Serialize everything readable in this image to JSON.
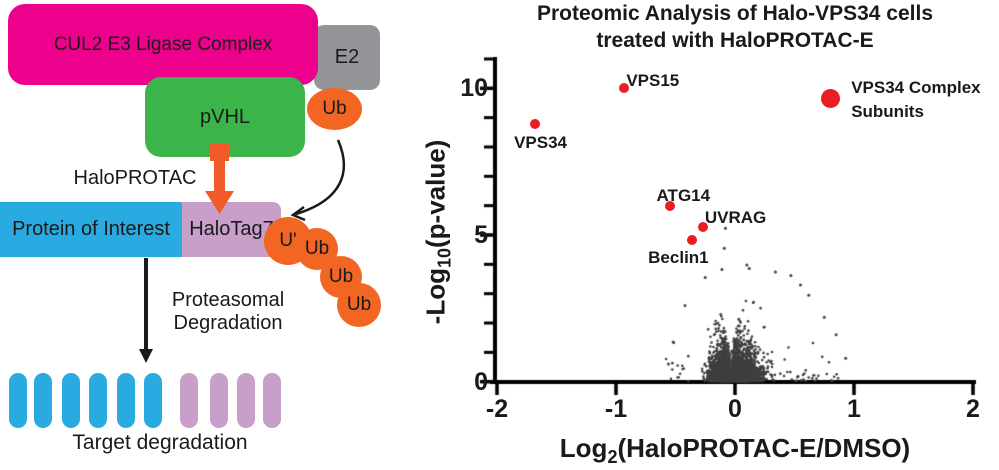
{
  "figure": {
    "background": "#FFFFFF"
  },
  "diagram": {
    "cul2_complex": "CUL2 E3 Ligase Complex",
    "e2": "E2",
    "pvhl": "pVHL",
    "ub": "Ub",
    "haloprotac": "HaloPROTAC",
    "protein_of_interest": "Protein of Interest",
    "halotag7": "HaloTag7",
    "ub_chain": [
      "U'",
      "Ub",
      "Ub",
      "Ub"
    ],
    "proteasomal_degradation": [
      "Proteasomal",
      "Degradation"
    ],
    "target_degradation": "Target degradation",
    "pill_row": {
      "blue_count": 6,
      "plum_count": 4
    },
    "colors": {
      "magenta": "#EC008C",
      "gray": "#939598",
      "green": "#3BB54A",
      "orange": "#F26522",
      "arrow_orange": "#F15A29",
      "blue": "#29ABE2",
      "plum": "#C79FC9",
      "ink": "#1A1A1A"
    }
  },
  "chart_data": {
    "type": "scatter",
    "title": [
      "Proteomic Analysis of Halo-VPS34 cells",
      "treated with HaloPROTAC-E"
    ],
    "xlabel": {
      "main": "Log",
      "sub": "2",
      "rest": "(HaloPROTAC-E/DMSO)"
    },
    "ylabel": {
      "main": "-Log",
      "sub": "10",
      "rest": "(p-value)"
    },
    "xlim": [
      -2,
      2
    ],
    "ylim": [
      0,
      11
    ],
    "grid": false,
    "x_ticks": [
      {
        "value": -2,
        "label": "-2"
      },
      {
        "value": -1,
        "label": "-1"
      },
      {
        "value": 0,
        "label": "0"
      },
      {
        "value": 1,
        "label": "1"
      },
      {
        "value": 2,
        "label": "2"
      }
    ],
    "y_ticks": [
      {
        "value": 0,
        "label": "0"
      },
      {
        "value": 5,
        "label": "5"
      },
      {
        "value": 10,
        "label": "10"
      }
    ],
    "y_minor_ticks": [
      1,
      2,
      3,
      4,
      6,
      7,
      8,
      9,
      11
    ],
    "point_color": "#3F3F3F",
    "highlight_color": "#EC1C24",
    "highlighted_points": [
      {
        "id": "vps34",
        "label": "VPS34",
        "x": -1.68,
        "y": 8.8,
        "diameter": 10
      },
      {
        "id": "vps15",
        "label": "VPS15",
        "x": -0.93,
        "y": 10.0,
        "diameter": 10
      },
      {
        "id": "vps34-complex",
        "label": "VPS34 Complex Subunits",
        "label_lines": [
          "VPS34 Complex",
          "Subunits"
        ],
        "x": 0.8,
        "y": 9.65,
        "diameter": 19
      },
      {
        "id": "atg14",
        "label": "ATG14",
        "x": -0.55,
        "y": 6.0,
        "diameter": 10
      },
      {
        "id": "uvrag",
        "label": "UVRAG",
        "x": -0.27,
        "y": 5.28,
        "diameter": 10
      },
      {
        "id": "beclin1",
        "label": "Beclin1",
        "x": -0.36,
        "y": 4.83,
        "diameter": 10
      }
    ],
    "outlier_points": [
      [
        -0.08,
        5.23
      ],
      [
        -0.09,
        4.55
      ],
      [
        0.1,
        3.98
      ],
      [
        -0.11,
        3.82
      ],
      [
        0.12,
        3.86
      ],
      [
        0.34,
        3.74
      ],
      [
        0.47,
        3.62
      ],
      [
        -0.25,
        3.55
      ],
      [
        0.55,
        3.3
      ],
      [
        0.62,
        2.95
      ],
      [
        -0.42,
        2.6
      ],
      [
        0.75,
        2.2
      ],
      [
        0.85,
        1.6
      ],
      [
        -0.52,
        1.35
      ],
      [
        0.93,
        0.8
      ],
      [
        -0.56,
        0.6
      ]
    ],
    "background_cloud": {
      "count": 3000,
      "sparse_count": 90,
      "seed": 11,
      "notch_x": -0.033,
      "left_fraction": 0.38,
      "center_fraction": 0.14,
      "left_sigma": 0.075,
      "right_sigma": 0.11,
      "y_decay": 0.95,
      "x_min": -0.58,
      "x_max": 0.88,
      "envelope": [
        [
          0,
          1.0
        ],
        [
          0.035,
          1.7
        ],
        [
          0.14,
          3.5
        ],
        [
          0.22,
          3.2
        ],
        [
          0.3,
          2.9
        ],
        [
          0.5,
          1.8
        ],
        [
          0.7,
          1.0
        ],
        [
          0.95,
          0.5
        ]
      ]
    }
  }
}
